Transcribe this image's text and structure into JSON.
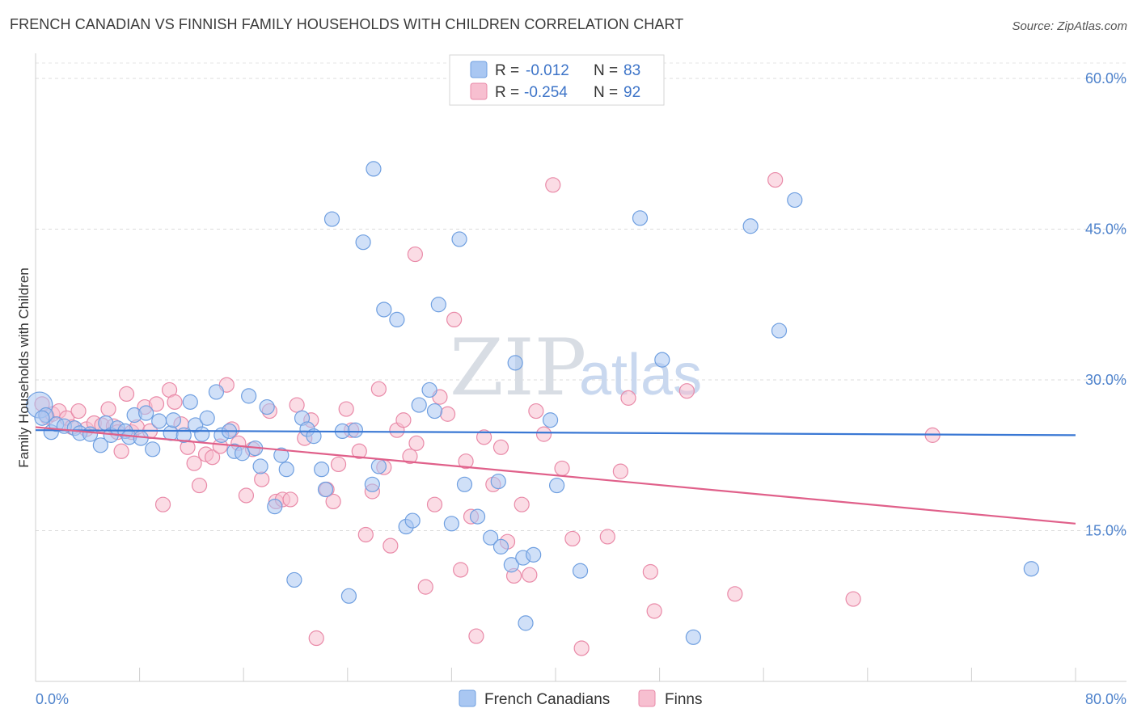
{
  "header": {
    "title": "FRENCH CANADIAN VS FINNISH FAMILY HOUSEHOLDS WITH CHILDREN CORRELATION CHART",
    "source": "Source: ZipAtlas.com"
  },
  "watermark": {
    "zip": "ZIP",
    "atlas": "atlas"
  },
  "chart_data": {
    "type": "scatter",
    "ylabel": "Family Households with Children",
    "xlim": [
      0,
      80
    ],
    "ylim": [
      0,
      60
    ],
    "y_ticks": [
      {
        "value": 15,
        "label": "15.0%"
      },
      {
        "value": 30,
        "label": "30.0%"
      },
      {
        "value": 45,
        "label": "45.0%"
      },
      {
        "value": 60,
        "label": "60.0%"
      }
    ],
    "x_tick_labels": {
      "left": "0.0%",
      "right": "80.0%"
    },
    "grid": "horizontal dashed",
    "legend_position": "top-center",
    "stats": [
      {
        "r_label": "R =",
        "r_value": "-0.012",
        "n_label": "N =",
        "n_value": "83"
      },
      {
        "r_label": "R =",
        "r_value": "-0.254",
        "n_label": "N =",
        "n_value": "92"
      }
    ],
    "series": [
      {
        "name": "French Canadians",
        "color": "#a9c7f2",
        "stroke": "#6f9fe0",
        "trend": {
          "x0": 0,
          "y0": 25.0,
          "x1": 80,
          "y1": 24.5,
          "color": "#3a78d4"
        },
        "points": [
          [
            0.3,
            27.5
          ],
          [
            0.8,
            26.5
          ],
          [
            1.2,
            24.8
          ],
          [
            1.6,
            25.6
          ],
          [
            2.2,
            25.4
          ],
          [
            3.0,
            25.2
          ],
          [
            3.4,
            24.7
          ],
          [
            4.2,
            24.6
          ],
          [
            5.0,
            23.5
          ],
          [
            5.4,
            25.7
          ],
          [
            5.8,
            24.5
          ],
          [
            6.3,
            25.2
          ],
          [
            6.9,
            24.9
          ],
          [
            7.2,
            24.3
          ],
          [
            7.6,
            26.5
          ],
          [
            8.1,
            24.2
          ],
          [
            8.5,
            26.7
          ],
          [
            9.0,
            23.1
          ],
          [
            9.5,
            25.9
          ],
          [
            10.4,
            24.7
          ],
          [
            10.6,
            26.0
          ],
          [
            11.4,
            24.5
          ],
          [
            11.9,
            27.8
          ],
          [
            12.3,
            25.5
          ],
          [
            12.8,
            24.6
          ],
          [
            13.2,
            26.2
          ],
          [
            13.9,
            28.8
          ],
          [
            14.3,
            24.5
          ],
          [
            14.9,
            24.9
          ],
          [
            15.3,
            22.9
          ],
          [
            15.9,
            22.7
          ],
          [
            16.4,
            28.4
          ],
          [
            16.9,
            23.2
          ],
          [
            17.3,
            21.4
          ],
          [
            17.8,
            27.3
          ],
          [
            18.4,
            17.4
          ],
          [
            18.9,
            22.5
          ],
          [
            19.3,
            21.1
          ],
          [
            19.9,
            10.1
          ],
          [
            20.5,
            26.2
          ],
          [
            20.9,
            25.1
          ],
          [
            21.4,
            24.4
          ],
          [
            22.0,
            21.1
          ],
          [
            22.3,
            19.1
          ],
          [
            22.8,
            46.0
          ],
          [
            23.6,
            24.9
          ],
          [
            24.1,
            8.5
          ],
          [
            24.6,
            25.0
          ],
          [
            25.2,
            43.7
          ],
          [
            25.9,
            19.6
          ],
          [
            26.0,
            51.0
          ],
          [
            26.4,
            21.4
          ],
          [
            26.8,
            37.0
          ],
          [
            27.8,
            36.0
          ],
          [
            28.5,
            15.4
          ],
          [
            29.0,
            16.0
          ],
          [
            29.5,
            27.5
          ],
          [
            30.3,
            29.0
          ],
          [
            30.7,
            26.9
          ],
          [
            31.0,
            37.5
          ],
          [
            32.0,
            15.7
          ],
          [
            32.6,
            44.0
          ],
          [
            33.0,
            19.6
          ],
          [
            34.0,
            16.4
          ],
          [
            35.0,
            14.3
          ],
          [
            35.6,
            19.9
          ],
          [
            35.8,
            13.4
          ],
          [
            36.6,
            11.6
          ],
          [
            36.9,
            31.7
          ],
          [
            37.5,
            12.3
          ],
          [
            37.7,
            5.8
          ],
          [
            38.3,
            12.6
          ],
          [
            39.6,
            26.0
          ],
          [
            40.1,
            19.5
          ],
          [
            41.9,
            11.0
          ],
          [
            46.5,
            46.1
          ],
          [
            48.2,
            32.0
          ],
          [
            50.6,
            4.4
          ],
          [
            55.0,
            45.3
          ],
          [
            57.2,
            34.9
          ],
          [
            58.4,
            47.9
          ],
          [
            76.6,
            11.2
          ],
          [
            0.5,
            26.2
          ]
        ]
      },
      {
        "name": "Finns",
        "color": "#f7bfd0",
        "stroke": "#e98aa8",
        "trend": {
          "x0": 0,
          "y0": 25.3,
          "x1": 80,
          "y1": 15.7,
          "color": "#e0608a"
        },
        "points": [
          [
            0.5,
            27.6
          ],
          [
            0.9,
            26.3
          ],
          [
            1.3,
            26.6
          ],
          [
            1.8,
            26.9
          ],
          [
            2.4,
            26.2
          ],
          [
            2.8,
            25.3
          ],
          [
            3.3,
            26.9
          ],
          [
            3.9,
            25.1
          ],
          [
            4.5,
            25.7
          ],
          [
            5.1,
            25.5
          ],
          [
            5.6,
            27.1
          ],
          [
            6.0,
            25.4
          ],
          [
            6.3,
            24.8
          ],
          [
            6.6,
            22.9
          ],
          [
            7.0,
            28.6
          ],
          [
            7.4,
            24.8
          ],
          [
            7.8,
            25.3
          ],
          [
            8.4,
            27.3
          ],
          [
            8.8,
            24.9
          ],
          [
            9.3,
            27.6
          ],
          [
            9.8,
            17.6
          ],
          [
            10.3,
            29.0
          ],
          [
            10.7,
            27.8
          ],
          [
            11.2,
            25.6
          ],
          [
            11.7,
            23.3
          ],
          [
            12.2,
            21.7
          ],
          [
            12.6,
            19.5
          ],
          [
            13.1,
            22.6
          ],
          [
            13.6,
            22.3
          ],
          [
            14.2,
            23.4
          ],
          [
            14.7,
            29.5
          ],
          [
            15.1,
            25.1
          ],
          [
            15.6,
            23.7
          ],
          [
            16.2,
            18.5
          ],
          [
            16.7,
            23.1
          ],
          [
            17.4,
            20.1
          ],
          [
            18.0,
            26.9
          ],
          [
            18.5,
            17.9
          ],
          [
            19.0,
            18.1
          ],
          [
            19.6,
            18.1
          ],
          [
            20.1,
            27.5
          ],
          [
            20.7,
            24.2
          ],
          [
            21.2,
            26.0
          ],
          [
            21.6,
            4.3
          ],
          [
            22.4,
            19.1
          ],
          [
            22.9,
            17.9
          ],
          [
            23.3,
            21.6
          ],
          [
            23.9,
            27.1
          ],
          [
            24.3,
            25.0
          ],
          [
            24.9,
            22.9
          ],
          [
            25.4,
            14.6
          ],
          [
            25.9,
            18.9
          ],
          [
            26.4,
            29.1
          ],
          [
            26.8,
            21.3
          ],
          [
            27.3,
            13.5
          ],
          [
            27.8,
            25.0
          ],
          [
            28.3,
            26.0
          ],
          [
            28.8,
            22.4
          ],
          [
            29.3,
            23.7
          ],
          [
            30.0,
            9.4
          ],
          [
            30.7,
            17.6
          ],
          [
            31.1,
            28.3
          ],
          [
            31.7,
            26.6
          ],
          [
            32.2,
            36.0
          ],
          [
            32.7,
            11.1
          ],
          [
            33.1,
            21.9
          ],
          [
            33.5,
            16.4
          ],
          [
            33.9,
            4.5
          ],
          [
            34.5,
            24.3
          ],
          [
            35.2,
            19.6
          ],
          [
            35.8,
            23.3
          ],
          [
            36.3,
            13.9
          ],
          [
            36.8,
            10.5
          ],
          [
            37.4,
            17.6
          ],
          [
            38.0,
            10.6
          ],
          [
            38.5,
            26.9
          ],
          [
            39.1,
            24.6
          ],
          [
            39.8,
            49.4
          ],
          [
            40.5,
            21.2
          ],
          [
            41.3,
            14.2
          ],
          [
            42.0,
            3.3
          ],
          [
            44.0,
            14.4
          ],
          [
            45.0,
            20.9
          ],
          [
            45.6,
            28.2
          ],
          [
            47.3,
            10.9
          ],
          [
            47.6,
            7.0
          ],
          [
            50.1,
            28.9
          ],
          [
            53.8,
            8.7
          ],
          [
            56.9,
            49.9
          ],
          [
            62.9,
            8.2
          ],
          [
            69.0,
            24.5
          ],
          [
            29.2,
            42.5
          ]
        ]
      }
    ]
  },
  "bottom_legend": [
    {
      "label": "French Canadians",
      "color": "#a9c7f2",
      "stroke": "#6f9fe0"
    },
    {
      "label": "Finns",
      "color": "#f7bfd0",
      "stroke": "#e98aa8"
    }
  ]
}
